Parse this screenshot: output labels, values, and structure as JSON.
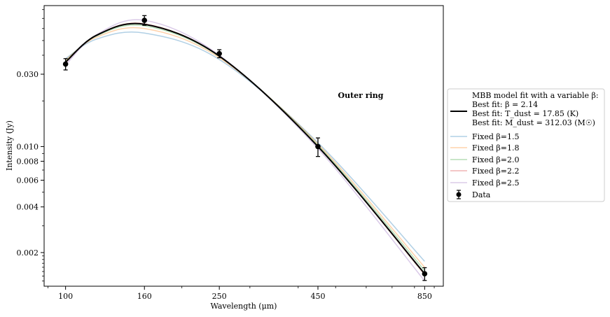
{
  "chart_data": {
    "type": "line",
    "title": "",
    "annotation": "Outer ring",
    "xlabel": "Wavelength (μm)",
    "ylabel": "Intensity (Jy)",
    "x_scale": "log",
    "y_scale": "log",
    "xlim": [
      88,
      950
    ],
    "ylim": [
      0.0012,
      0.085
    ],
    "x_ticks": [
      100,
      160,
      250,
      450,
      850
    ],
    "x_tick_labels": [
      "100",
      "160",
      "250",
      "450",
      "850"
    ],
    "y_ticks": [
      0.002,
      0.004,
      0.006,
      0.008,
      0.01,
      0.03
    ],
    "y_tick_labels": [
      "0.002",
      "0.004",
      "0.006",
      "0.008",
      "0.010",
      "0.030"
    ],
    "grid": false,
    "legend_position": "right, outside plot",
    "best_fit_label": {
      "line1": "MBB model fit with a variable β:",
      "line2": "Best fit: β = 2.14",
      "line3": "Best fit: T_dust = 17.85 (K)",
      "line4": "Best fit: M_dust = 312.03 (M☉)"
    },
    "best_fit_beta": 2.14,
    "best_fit_temperature_K": 17.85,
    "best_fit_mass_Msun": 312.03,
    "series": [
      {
        "name": "Fixed β=1.5",
        "color": "#1f77b4",
        "x": [
          100,
          120,
          160,
          250,
          450,
          850
        ],
        "values": [
          0.038,
          0.051,
          0.056,
          0.0375,
          0.0106,
          0.00175
        ]
      },
      {
        "name": "Fixed β=1.8",
        "color": "#ff7f0e",
        "x": [
          100,
          120,
          160,
          250,
          450,
          850
        ],
        "values": [
          0.0372,
          0.0525,
          0.06,
          0.0385,
          0.0104,
          0.0016
        ]
      },
      {
        "name": "Fixed β=2.0",
        "color": "#2ca02c",
        "x": [
          100,
          120,
          160,
          250,
          450,
          850
        ],
        "values": [
          0.0365,
          0.0535,
          0.0625,
          0.0392,
          0.0102,
          0.00152
        ]
      },
      {
        "name": "Fixed β=2.2",
        "color": "#d62728",
        "x": [
          100,
          120,
          160,
          250,
          450,
          850
        ],
        "values": [
          0.0357,
          0.054,
          0.0645,
          0.0395,
          0.01,
          0.00143
        ]
      },
      {
        "name": "Fixed β=2.5",
        "color": "#9467bd",
        "x": [
          100,
          120,
          160,
          250,
          450,
          850
        ],
        "values": [
          0.0345,
          0.0545,
          0.068,
          0.04,
          0.0097,
          0.0013
        ]
      }
    ],
    "best_fit_series": {
      "color": "#000000",
      "x": [
        100,
        120,
        160,
        250,
        450,
        850
      ],
      "values": [
        0.036,
        0.054,
        0.064,
        0.0395,
        0.01,
        0.00145
      ]
    },
    "data_points": {
      "name": "Data",
      "x": [
        100,
        160,
        250,
        450,
        850
      ],
      "values": [
        0.035,
        0.068,
        0.041,
        0.01,
        0.00145
      ],
      "err_low": [
        0.003,
        0.005,
        0.0025,
        0.0014,
        0.00014
      ],
      "err_high": [
        0.003,
        0.005,
        0.0025,
        0.0014,
        0.00014
      ]
    }
  }
}
